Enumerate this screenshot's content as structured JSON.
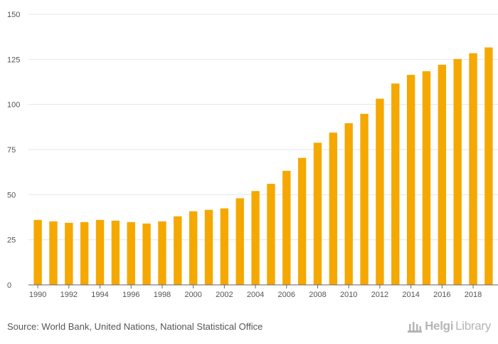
{
  "chart_data": {
    "type": "bar",
    "title": "",
    "xlabel": "",
    "ylabel": "",
    "ylim": [
      0,
      150
    ],
    "yticks": [
      0,
      25,
      50,
      75,
      100,
      125,
      150
    ],
    "grid": true,
    "bar_color": "#f5a800",
    "categories": [
      "1990",
      "1991",
      "1992",
      "1993",
      "1994",
      "1995",
      "1996",
      "1997",
      "1998",
      "1999",
      "2000",
      "2001",
      "2002",
      "2003",
      "2004",
      "2005",
      "2006",
      "2007",
      "2008",
      "2009",
      "2010",
      "2011",
      "2012",
      "2013",
      "2014",
      "2015",
      "2016",
      "2017",
      "2018",
      "2019"
    ],
    "x_tick_labels": [
      "1990",
      "1992",
      "1994",
      "1996",
      "1998",
      "2000",
      "2002",
      "2004",
      "2006",
      "2008",
      "2010",
      "2012",
      "2014",
      "2016",
      "2018"
    ],
    "values": [
      36,
      35.2,
      34.4,
      34.8,
      36,
      35.6,
      34.8,
      34,
      35.2,
      38,
      40.8,
      41.6,
      42.4,
      48,
      52,
      56,
      63.2,
      70.4,
      78.8,
      84.4,
      89.6,
      94.8,
      103.2,
      111.6,
      116.4,
      118.4,
      122,
      125.2,
      128.4,
      131.6
    ]
  },
  "footer": {
    "source": "Source: World Bank, United Nations, National Statistical Office",
    "brand_prefix": "Helgi",
    "brand_suffix": "Library"
  }
}
